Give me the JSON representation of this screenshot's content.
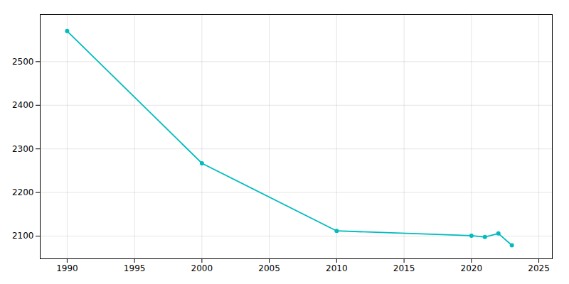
{
  "chart_data": {
    "type": "line",
    "x": [
      1990,
      2000,
      2010,
      2020,
      2021,
      2022,
      2023
    ],
    "values": [
      2570,
      2267,
      2112,
      2101,
      2098,
      2106,
      2079
    ],
    "color": "#00BBBF",
    "marker": "circle",
    "xlim": [
      1988,
      2026
    ],
    "ylim": [
      2048,
      2608
    ],
    "xticks": [
      1990,
      1995,
      2000,
      2005,
      2010,
      2015,
      2020,
      2025
    ],
    "yticks": [
      2100,
      2200,
      2300,
      2400,
      2500
    ],
    "grid": true
  }
}
